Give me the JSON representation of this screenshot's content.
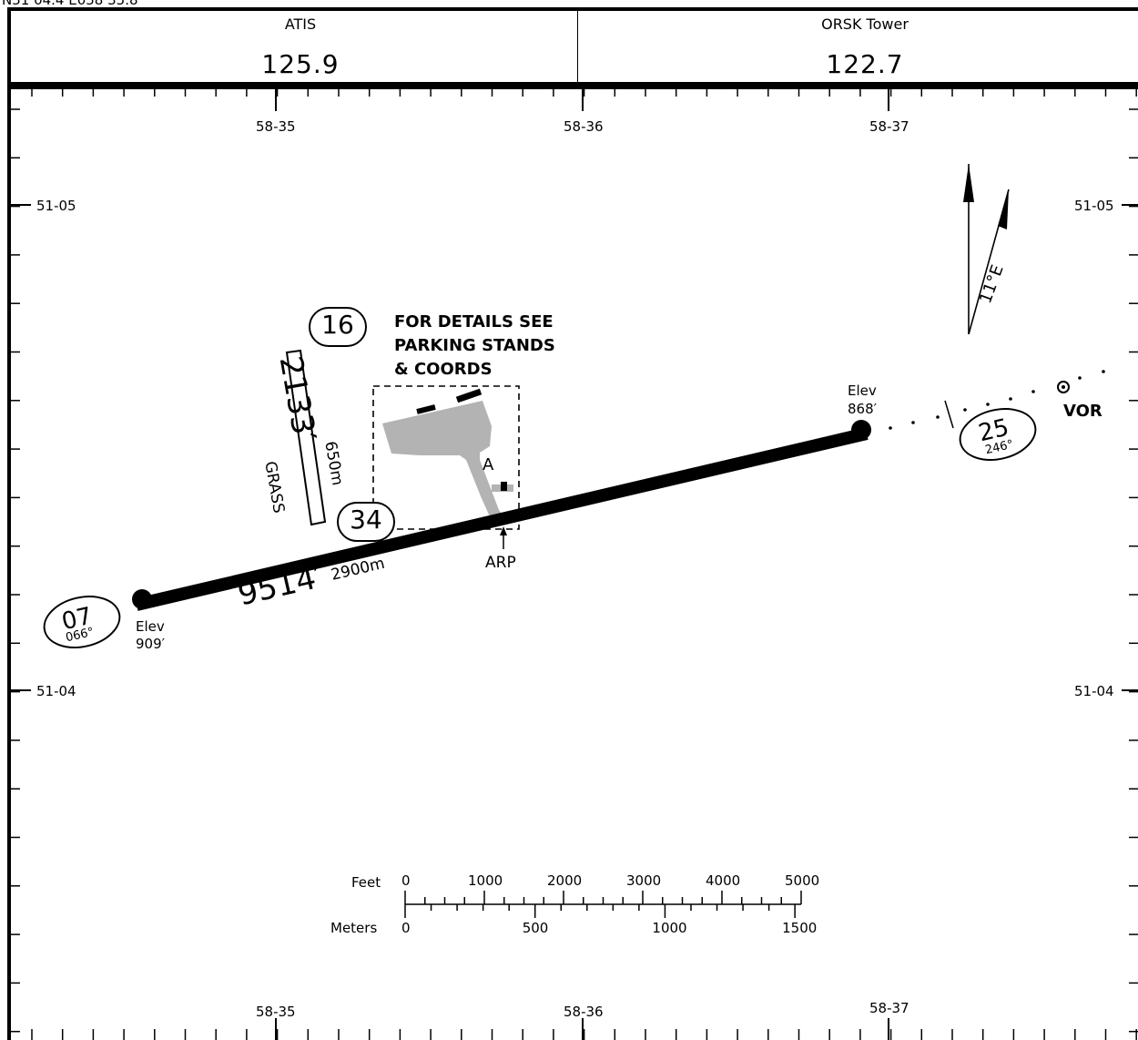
{
  "header": {
    "coords": "N51 04.4 E058 35.8",
    "frequencies": [
      {
        "name": "ATIS",
        "value": "125.9"
      },
      {
        "name": "ORSK Tower",
        "value": "122.7"
      }
    ]
  },
  "grid": {
    "longitude_labels": [
      "58-35",
      "58-36",
      "58-37"
    ],
    "latitude_labels": [
      "51-05",
      "51-04"
    ]
  },
  "runway_main": {
    "length_ft": "9514′",
    "length_m": "2900m",
    "end_west": {
      "number": "07",
      "heading": "066°",
      "elev_label": "Elev",
      "elev_value": "909′"
    },
    "end_east": {
      "number": "25",
      "heading": "246°",
      "elev_label": "Elev",
      "elev_value": "868′"
    }
  },
  "runway_grass": {
    "length_ft": "2133′",
    "length_m": "650m",
    "surface": "GRASS",
    "end_north": "16",
    "end_south": "34"
  },
  "notes": {
    "details_line1": "FOR DETAILS SEE",
    "details_line2": "PARKING STANDS",
    "details_line3": "& COORDS",
    "taxiway": "A",
    "arp": "ARP",
    "vor": "VOR",
    "magvar": "11°E"
  },
  "scale": {
    "feet_label": "Feet",
    "meters_label": "Meters",
    "feet_ticks": [
      "0",
      "1000",
      "2000",
      "3000",
      "4000",
      "5000"
    ],
    "meter_ticks": [
      "0",
      "500",
      "1000",
      "1500"
    ]
  },
  "colors": {
    "ink": "#000000",
    "apron": "#b3b3b3"
  }
}
